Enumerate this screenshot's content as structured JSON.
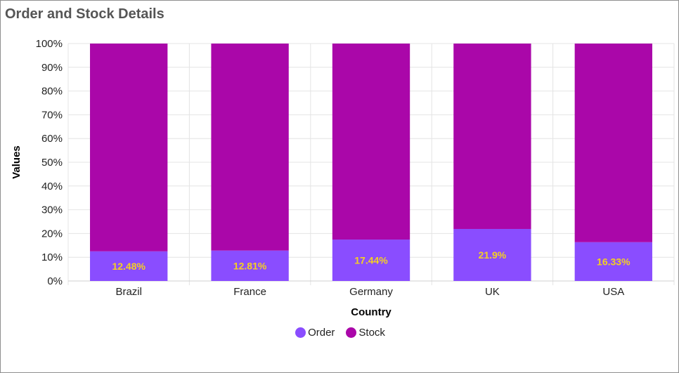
{
  "chart_data": {
    "type": "bar",
    "stacking": "100%",
    "title": "Order and Stock Details",
    "xlabel": "Country",
    "ylabel": "Values",
    "categories": [
      "Brazil",
      "France",
      "Germany",
      "UK",
      "USA"
    ],
    "y_ticks": [
      "0%",
      "10%",
      "20%",
      "30%",
      "40%",
      "50%",
      "60%",
      "70%",
      "80%",
      "90%",
      "100%"
    ],
    "ylim": [
      0,
      100
    ],
    "series": [
      {
        "name": "Order",
        "color": "#8a4dff",
        "values": [
          12.48,
          12.81,
          17.44,
          21.9,
          16.33
        ],
        "labels": [
          "12.48%",
          "12.81%",
          "17.44%",
          "21.9%",
          "16.33%"
        ]
      },
      {
        "name": "Stock",
        "color": "#aa07a9",
        "values": [
          87.52,
          87.19,
          82.56,
          78.1,
          83.67
        ]
      }
    ],
    "data_label_color": "#f5d020",
    "grid": true,
    "legend_position": "bottom"
  }
}
